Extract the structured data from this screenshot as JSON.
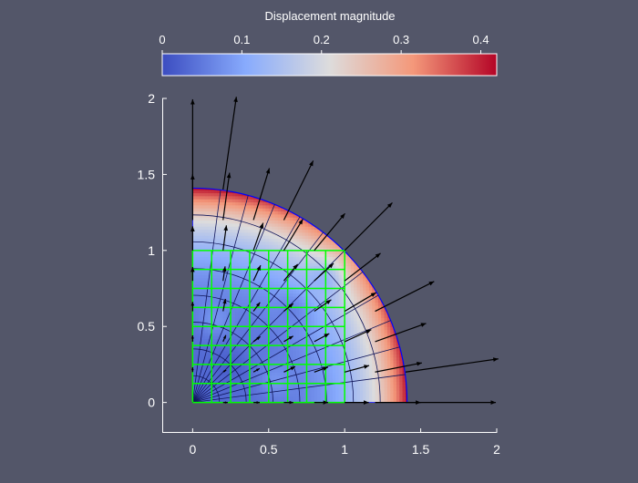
{
  "chart_data": {
    "type": "quiver",
    "background_color": "#535669",
    "colorbar": {
      "title": "Displacement magnitude",
      "range": [
        0,
        0.42
      ],
      "ticks": [
        0,
        0.1,
        0.2,
        0.3,
        0.4
      ],
      "tick_labels": [
        "0",
        "0.1",
        "0.2",
        "0.3",
        "0.4"
      ],
      "colormap": "coolwarm",
      "colors": [
        "#3b4cc0",
        "#88abfd",
        "#dddcdc",
        "#f4987a",
        "#b40426"
      ]
    },
    "xlim": [
      -0.2,
      2
    ],
    "ylim": [
      -0.2,
      2
    ],
    "x_ticks": [
      0,
      0.5,
      1,
      1.5,
      2
    ],
    "x_tick_labels": [
      "0",
      "0.5",
      "1",
      "1.5",
      "2"
    ],
    "y_ticks": [
      0,
      0.5,
      1,
      1.5,
      2
    ],
    "y_tick_labels": [
      "0",
      "0.5",
      "1",
      "1.5",
      "2"
    ],
    "grid": false,
    "original_mesh": {
      "shape": "square",
      "x_range": [
        0,
        1
      ],
      "y_range": [
        0,
        1
      ],
      "divisions": 8,
      "color": "#00ff00"
    },
    "deformed_mesh": {
      "shape": "quarter-disk",
      "outer_radius": 1.41,
      "radial_divisions": 8,
      "angular_divisions": 12,
      "line_color": "#0000ff"
    },
    "vector_field": {
      "color": "#000000",
      "rows": [
        0,
        0.2,
        0.4,
        0.6,
        0.8,
        1.0,
        1.2,
        1.4
      ],
      "scale": 1.5
    },
    "magnitude_hotspots": [
      {
        "x": 0.25,
        "y": 0.25,
        "value": 0.02
      },
      {
        "x": 0.45,
        "y": 0.4,
        "value": 0.05
      },
      {
        "x": 0.65,
        "y": 0.6,
        "value": 0.06
      },
      {
        "x": 0.55,
        "y": 0.15,
        "value": 0.08
      },
      {
        "x": 0.15,
        "y": 0.55,
        "value": 0.08
      },
      {
        "x": 0.85,
        "y": 0.8,
        "value": 0.12
      }
    ]
  }
}
